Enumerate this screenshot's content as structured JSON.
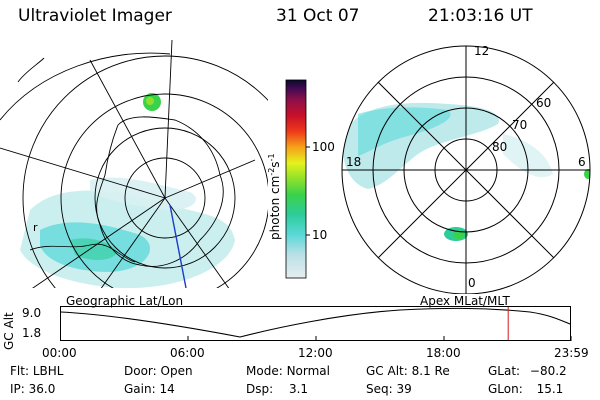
{
  "header": {
    "instrument": "Ultraviolet Imager",
    "date": "31 Oct 07",
    "time": "21:03:16 UT"
  },
  "colorbar": {
    "label": "photon cm",
    "label_exp1": "-2",
    "label_s": "s",
    "label_exp2": "-1",
    "ticks": [
      "100",
      "10"
    ],
    "scale": "log",
    "colors": [
      "#e6eef0",
      "#b8e0e6",
      "#5ad8d8",
      "#2ecc9a",
      "#39d24b",
      "#8fe02c",
      "#e5f21c",
      "#f6a21a",
      "#ee3a1a",
      "#c8102a",
      "#8e0f4a",
      "#3d0a52",
      "#0a0a2a"
    ]
  },
  "left_panel": {
    "name": "Geographic Lat/Lon"
  },
  "right_panel": {
    "name": "Apex MLat/MLT",
    "lat_labels": [
      "60",
      "70",
      "80"
    ],
    "mlt_labels": {
      "top": "12",
      "bottom": "0",
      "left": "18",
      "right": "6"
    }
  },
  "timeline": {
    "ylabel": "GC Alt",
    "yticks": [
      "9.0",
      "1.8"
    ],
    "xticks": [
      "00:00",
      "06:00",
      "12:00",
      "18:00",
      "23:59"
    ],
    "current_time_hours": 21.05
  },
  "status": {
    "filter_label": "Flt:",
    "filter": "LBHL",
    "ip_label": "IP:",
    "ip": "36.0",
    "door_label": "Door:",
    "door": "Open",
    "gain_label": "Gain:",
    "gain": "14",
    "mode_label": "Mode:",
    "mode": "Normal",
    "dsp_label": "Dsp:",
    "dsp": "3.1",
    "alt_label": "GC Alt:",
    "alt": "8.1 Re",
    "seq_label": "Seq:",
    "seq": "39",
    "glat_label": "GLat:",
    "glat": "−80.2",
    "glon_label": "GLon:",
    "glon": "15.1"
  }
}
